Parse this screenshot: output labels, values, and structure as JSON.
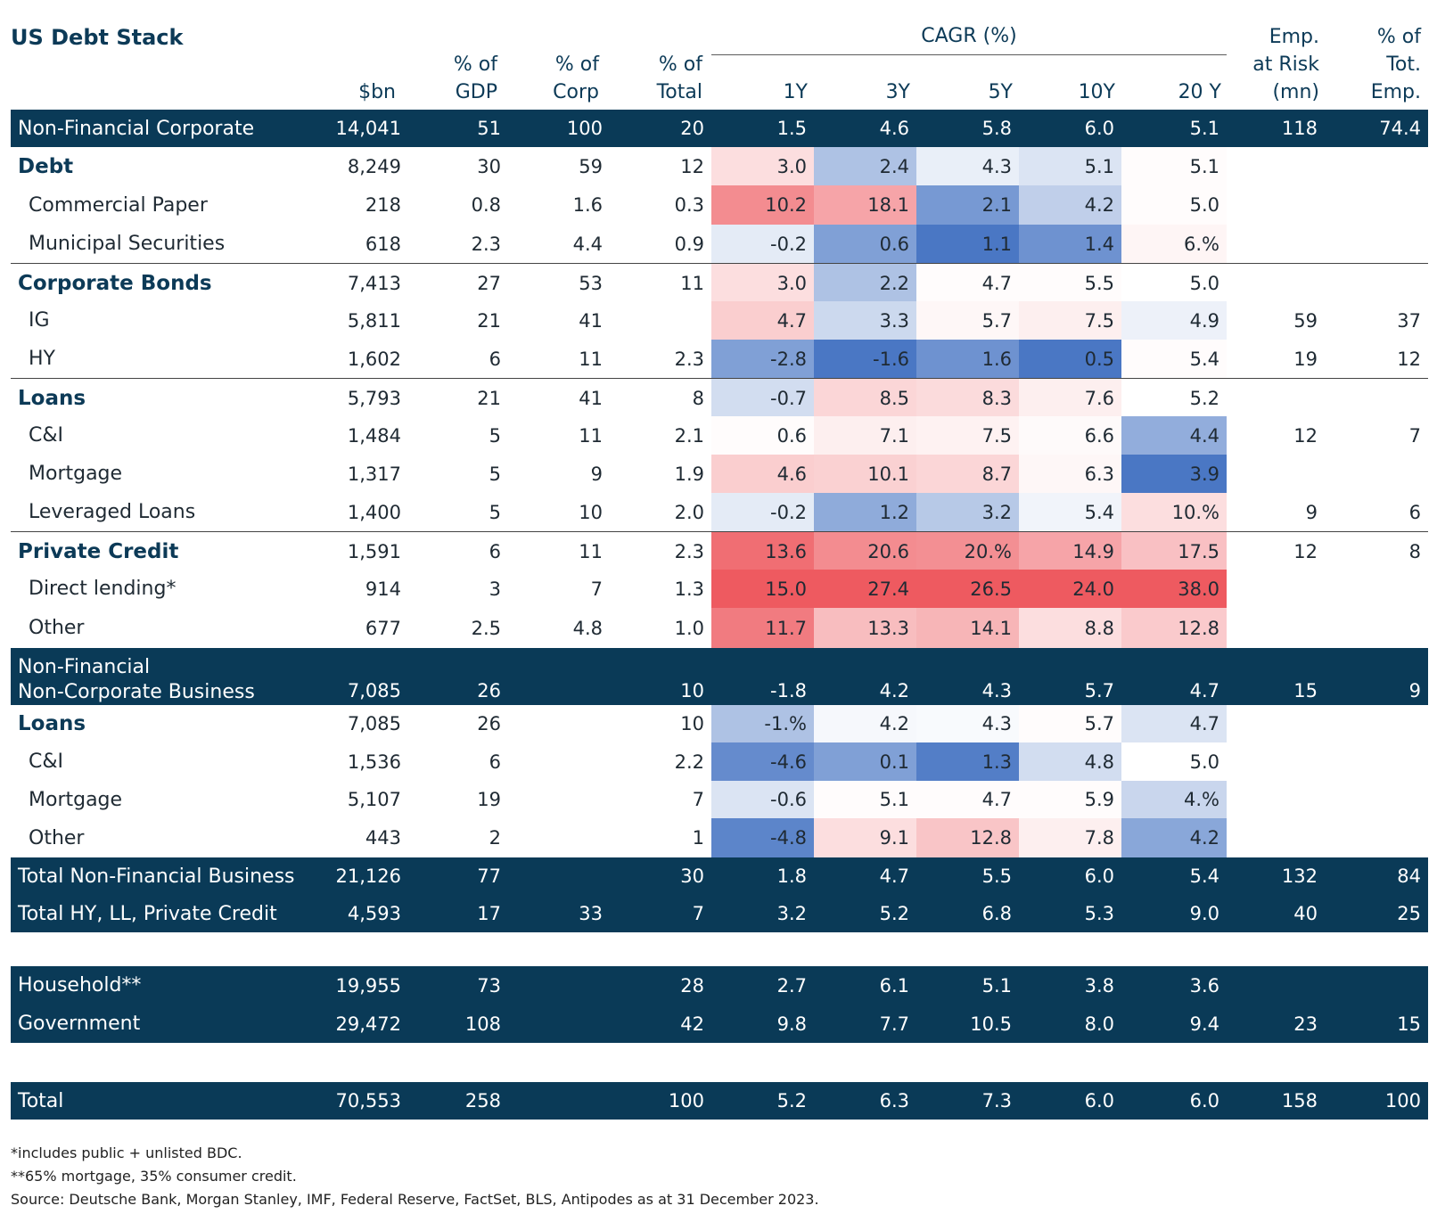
{
  "title": "US Debt Stack",
  "headers": {
    "bn": "$bn",
    "gdp": "% of\nGDP",
    "corp": "% of\nCorp",
    "total": "% of\nTotal",
    "cagr_group": "CAGR (%)",
    "y1": "1Y",
    "y3": "3Y",
    "y5": "5Y",
    "y10": "10Y",
    "y20": "20 Y",
    "emp": "Emp.\nat Risk\n(mn)",
    "emp_pct": "% of\nTot.\nEmp."
  },
  "colors": {
    "navy": "#0a3a57",
    "heat_red_strong": "#ee5a60",
    "heat_red_light": "#fde3e6",
    "heat_blue_strong": "#4a77c4",
    "heat_blue_light": "#e3eaf7"
  },
  "rows": [
    {
      "label": "Non-Financial Corporate",
      "style": "dark",
      "bn": "14,041",
      "gdp": "51",
      "corp": "100",
      "total": "20",
      "c1": "1.5",
      "c3": "4.6",
      "c5": "5.8",
      "c10": "6.0",
      "c20": "5.1",
      "emp": "118",
      "emp_pct": "74.4",
      "heat": [
        null,
        null,
        null,
        null,
        null
      ]
    },
    {
      "label": "Debt",
      "style": "bold",
      "bn": "8,249",
      "gdp": "30",
      "corp": "59",
      "total": "12",
      "c1": "3.0",
      "c3": "2.4",
      "c5": "4.3",
      "c10": "5.1",
      "c20": "5.1",
      "emp": "",
      "emp_pct": "",
      "heat": [
        0.2,
        -0.45,
        -0.12,
        -0.2,
        0.02
      ]
    },
    {
      "label": "Commercial Paper",
      "style": "sub",
      "bn": "218",
      "gdp": "0.8",
      "corp": "1.6",
      "total": "0.3",
      "c1": "10.2",
      "c3": "18.1",
      "c5": "2.1",
      "c10": "4.2",
      "c20": "5.0",
      "emp": "",
      "emp_pct": "",
      "heat": [
        0.7,
        0.55,
        -0.75,
        -0.35,
        0.02
      ]
    },
    {
      "label": "Municipal Securities",
      "style": "sub",
      "bn": "618",
      "gdp": "2.3",
      "corp": "4.4",
      "total": "0.9",
      "c1": "-0.2",
      "c3": "0.6",
      "c5": "1.1",
      "c10": "1.4",
      "c20": "6.%",
      "emp": "",
      "emp_pct": "",
      "heat": [
        -0.15,
        -0.7,
        -1.0,
        -0.8,
        0.06
      ]
    },
    {
      "label": "Corporate Bonds",
      "style": "bold",
      "sep": true,
      "bn": "7,413",
      "gdp": "27",
      "corp": "53",
      "total": "11",
      "c1": "3.0",
      "c3": "2.2",
      "c5": "4.7",
      "c10": "5.5",
      "c20": "5.0",
      "emp": "",
      "emp_pct": "",
      "heat": [
        0.2,
        -0.45,
        0.02,
        0.02,
        0.0
      ]
    },
    {
      "label": "IG",
      "style": "sub",
      "bn": "5,811",
      "gdp": "21",
      "corp": "41",
      "total": "",
      "c1": "4.7",
      "c3": "3.3",
      "c5": "5.7",
      "c10": "7.5",
      "c20": "4.9",
      "emp": "59",
      "emp_pct": "37",
      "heat": [
        0.3,
        -0.28,
        0.05,
        0.1,
        -0.1
      ]
    },
    {
      "label": "HY",
      "style": "sub",
      "bn": "1,602",
      "gdp": "6",
      "corp": "11",
      "total": "2.3",
      "c1": "-2.8",
      "c3": "-1.6",
      "c5": "1.6",
      "c10": "0.5",
      "c20": "5.4",
      "emp": "19",
      "emp_pct": "12",
      "heat": [
        -0.7,
        -1.0,
        -0.8,
        -1.0,
        0.02
      ]
    },
    {
      "label": "Loans",
      "style": "bold",
      "sep": true,
      "bn": "5,793",
      "gdp": "21",
      "corp": "41",
      "total": "8",
      "c1": "-0.7",
      "c3": "8.5",
      "c5": "8.3",
      "c10": "7.6",
      "c20": "5.2",
      "emp": "",
      "emp_pct": "",
      "heat": [
        -0.25,
        0.25,
        0.22,
        0.1,
        0.0
      ]
    },
    {
      "label": "C&I",
      "style": "sub",
      "bn": "1,484",
      "gdp": "5",
      "corp": "11",
      "total": "2.1",
      "c1": "0.6",
      "c3": "7.1",
      "c5": "7.5",
      "c10": "6.6",
      "c20": "4.4",
      "emp": "12",
      "emp_pct": "7",
      "heat": [
        0.02,
        0.1,
        0.08,
        0.03,
        -0.6
      ]
    },
    {
      "label": "Mortgage",
      "style": "sub",
      "bn": "1,317",
      "gdp": "5",
      "corp": "9",
      "total": "1.9",
      "c1": "4.6",
      "c3": "10.1",
      "c5": "8.7",
      "c10": "6.3",
      "c20": "3.9",
      "emp": "",
      "emp_pct": "",
      "heat": [
        0.3,
        0.28,
        0.25,
        0.05,
        -1.0
      ]
    },
    {
      "label": "Leveraged Loans",
      "style": "sub",
      "bn": "1,400",
      "gdp": "5",
      "corp": "10",
      "total": "2.0",
      "c1": "-0.2",
      "c3": "1.2",
      "c5": "3.2",
      "c10": "5.4",
      "c20": "10.%",
      "emp": "9",
      "emp_pct": "6",
      "heat": [
        -0.15,
        -0.62,
        -0.4,
        -0.08,
        0.2
      ]
    },
    {
      "label": "Private Credit",
      "style": "bold",
      "sep": true,
      "bn": "1,591",
      "gdp": "6",
      "corp": "11",
      "total": "2.3",
      "c1": "13.6",
      "c3": "20.6",
      "c5": "20.%",
      "c10": "14.9",
      "c20": "17.5",
      "emp": "12",
      "emp_pct": "8",
      "heat": [
        0.88,
        0.7,
        0.68,
        0.55,
        0.38
      ]
    },
    {
      "label": "Direct lending*",
      "style": "sub",
      "bn": "914",
      "gdp": "3",
      "corp": "7",
      "total": "1.3",
      "c1": "15.0",
      "c3": "27.4",
      "c5": "26.5",
      "c10": "24.0",
      "c20": "38.0",
      "emp": "",
      "emp_pct": "",
      "heat": [
        1.0,
        1.0,
        1.0,
        1.0,
        1.0
      ]
    },
    {
      "label": "Other",
      "style": "sub",
      "bn": "677",
      "gdp": "2.5",
      "corp": "4.8",
      "total": "1.0",
      "c1": "11.7",
      "c3": "13.3",
      "c5": "14.1",
      "c10": "8.8",
      "c20": "12.8",
      "emp": "",
      "emp_pct": "",
      "heat": [
        0.8,
        0.4,
        0.45,
        0.2,
        0.32
      ]
    },
    {
      "label": "Non-Financial\nNon-Corporate Business",
      "style": "dark2",
      "bn": "7,085",
      "gdp": "26",
      "corp": "",
      "total": "10",
      "c1": "-1.8",
      "c3": "4.2",
      "c5": "4.3",
      "c10": "5.7",
      "c20": "4.7",
      "emp": "15",
      "emp_pct": "9",
      "heat": [
        null,
        null,
        null,
        null,
        null
      ]
    },
    {
      "label": "Loans",
      "style": "bold",
      "bn": "7,085",
      "gdp": "26",
      "corp": "",
      "total": "10",
      "c1": "-1.%",
      "c3": "4.2",
      "c5": "4.3",
      "c10": "5.7",
      "c20": "4.7",
      "emp": "",
      "emp_pct": "",
      "heat": [
        -0.45,
        -0.05,
        -0.04,
        0.02,
        -0.2
      ]
    },
    {
      "label": "C&I",
      "style": "sub",
      "bn": "1,536",
      "gdp": "6",
      "corp": "",
      "total": "2.2",
      "c1": "-4.6",
      "c3": "0.1",
      "c5": "1.3",
      "c10": "4.8",
      "c20": "5.0",
      "emp": "",
      "emp_pct": "",
      "heat": [
        -0.85,
        -0.7,
        -0.95,
        -0.25,
        0.0
      ]
    },
    {
      "label": "Mortgage",
      "style": "sub",
      "bn": "5,107",
      "gdp": "19",
      "corp": "",
      "total": "7",
      "c1": "-0.6",
      "c3": "5.1",
      "c5": "4.7",
      "c10": "5.9",
      "c20": "4.%",
      "emp": "",
      "emp_pct": "",
      "heat": [
        -0.2,
        0.02,
        0.02,
        0.02,
        -0.3
      ]
    },
    {
      "label": "Other",
      "style": "sub",
      "bn": "443",
      "gdp": "2",
      "corp": "",
      "total": "1",
      "c1": "-4.8",
      "c3": "9.1",
      "c5": "12.8",
      "c10": "7.8",
      "c20": "4.2",
      "emp": "",
      "emp_pct": "",
      "heat": [
        -0.9,
        0.2,
        0.35,
        0.1,
        -0.65
      ]
    },
    {
      "label": "Total Non-Financial Business",
      "style": "dark",
      "bn": "21,126",
      "gdp": "77",
      "corp": "",
      "total": "30",
      "c1": "1.8",
      "c3": "4.7",
      "c5": "5.5",
      "c10": "6.0",
      "c20": "5.4",
      "emp": "132",
      "emp_pct": "84",
      "heat": [
        null,
        null,
        null,
        null,
        null
      ]
    },
    {
      "label": "Total HY, LL, Private Credit",
      "style": "dark",
      "bn": "4,593",
      "gdp": "17",
      "corp": "33",
      "total": "7",
      "c1": "3.2",
      "c3": "5.2",
      "c5": "6.8",
      "c10": "5.3",
      "c20": "9.0",
      "emp": "40",
      "emp_pct": "25",
      "heat": [
        null,
        null,
        null,
        null,
        null
      ]
    },
    {
      "label": "Household**",
      "style": "dark",
      "bn": "19,955",
      "gdp": "73",
      "corp": "",
      "total": "28",
      "c1": "2.7",
      "c3": "6.1",
      "c5": "5.1",
      "c10": "3.8",
      "c20": "3.6",
      "emp": "",
      "emp_pct": "",
      "heat": [
        null,
        null,
        null,
        null,
        null
      ]
    },
    {
      "label": "Government",
      "style": "dark",
      "bn": "29,472",
      "gdp": "108",
      "corp": "",
      "total": "42",
      "c1": "9.8",
      "c3": "7.7",
      "c5": "10.5",
      "c10": "8.0",
      "c20": "9.4",
      "emp": "23",
      "emp_pct": "15",
      "heat": [
        null,
        null,
        null,
        null,
        null
      ]
    },
    {
      "label": "Total",
      "style": "dark",
      "bn": "70,553",
      "gdp": "258",
      "corp": "",
      "total": "100",
      "c1": "5.2",
      "c3": "6.3",
      "c5": "7.3",
      "c10": "6.0",
      "c20": "6.0",
      "emp": "158",
      "emp_pct": "100",
      "heat": [
        null,
        null,
        null,
        null,
        null
      ]
    }
  ],
  "footnotes": [
    "*includes public + unlisted BDC.",
    "**65% mortgage, 35% consumer credit.",
    "Source: Deutsche Bank, Morgan Stanley, IMF, Federal Reserve, FactSet, BLS, Antipodes as at 31 December 2023."
  ]
}
